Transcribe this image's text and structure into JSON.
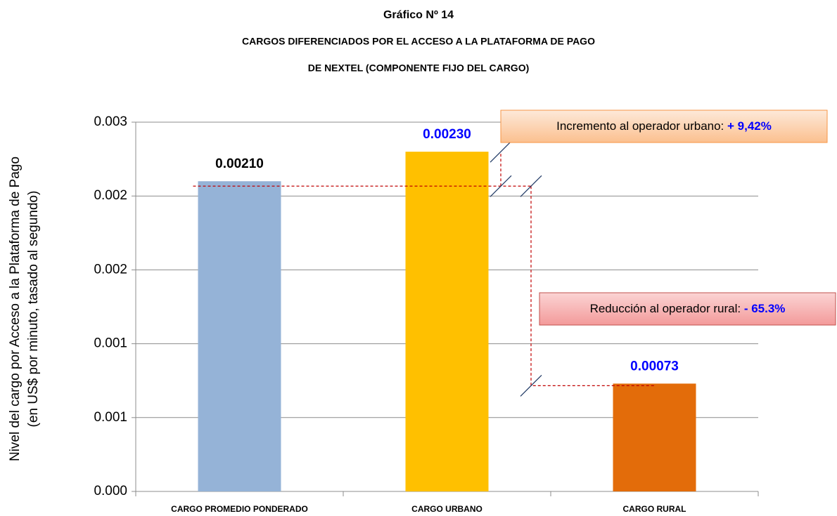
{
  "chart_data": {
    "type": "bar",
    "title": "Gráfico Nº 14",
    "subtitle": [
      "CARGOS DIFERENCIADOS POR EL ACCESO A LA PLATAFORMA DE PAGO",
      "DE NEXTEL (COMPONENTE FIJO DEL CARGO)"
    ],
    "y_label": [
      "Nivel del cargo por Acceso a la Plataforma de Pago",
      "(en US$ por minuto, tasado al segundo)"
    ],
    "categories": [
      "CARGO PROMEDIO PONDERADO",
      "CARGO URBANO",
      "CARGO RURAL"
    ],
    "values": [
      0.0021,
      0.0023,
      0.00073
    ],
    "value_labels": [
      "0.00210",
      "0.00230",
      "0.00073"
    ],
    "colors": [
      "#95b3d7",
      "#ffc000",
      "#e36c0a"
    ],
    "value_label_colors": [
      "#000000",
      "#0000ff",
      "#0000ff"
    ],
    "ylim": [
      0,
      0.0025
    ],
    "yticks": [
      {
        "value": 0,
        "label": "0.000"
      },
      {
        "value": 0.0005,
        "label": "0.001"
      },
      {
        "value": 0.001,
        "label": "0.001"
      },
      {
        "value": 0.0015,
        "label": "0.002"
      },
      {
        "value": 0.002,
        "label": "0.002"
      },
      {
        "value": 0.0025,
        "label": "0.003"
      }
    ],
    "grid": true,
    "annotations": [
      {
        "text": "Incremento al operador urbano: ",
        "highlight": "+ 9,42%"
      },
      {
        "text": "Reducción al operador rural: ",
        "highlight": "- 65.3%"
      }
    ]
  }
}
